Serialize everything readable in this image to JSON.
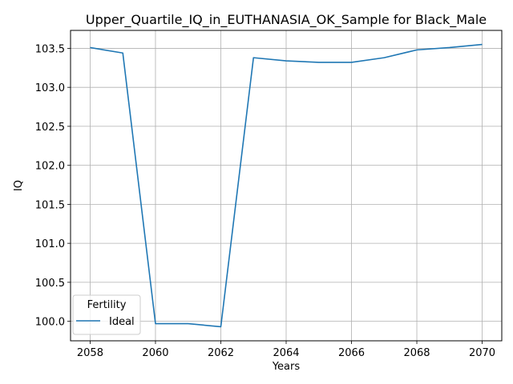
{
  "chart_data": {
    "type": "line",
    "title": "Upper_Quartile_IQ_in_EUTHANASIA_OK_Sample for Black_Male",
    "xlabel": "Years",
    "ylabel": "IQ",
    "x": [
      2058,
      2059,
      2060,
      2061,
      2062,
      2063,
      2064,
      2065,
      2066,
      2067,
      2068,
      2069,
      2070
    ],
    "series": [
      {
        "name": "Ideal",
        "color": "#1f77b4",
        "values": [
          103.51,
          103.44,
          99.97,
          99.97,
          99.93,
          103.38,
          103.34,
          103.32,
          103.32,
          103.38,
          103.48,
          103.51,
          103.55
        ]
      }
    ],
    "xlim": [
      2057.4,
      2070.6
    ],
    "ylim": [
      99.75,
      103.73
    ],
    "xticks": [
      2058,
      2060,
      2062,
      2064,
      2066,
      2068,
      2070
    ],
    "yticks": [
      100.0,
      100.5,
      101.0,
      101.5,
      102.0,
      102.5,
      103.0,
      103.5
    ],
    "grid": true,
    "legend": {
      "title": "Fertility",
      "placement": "lower left"
    }
  }
}
